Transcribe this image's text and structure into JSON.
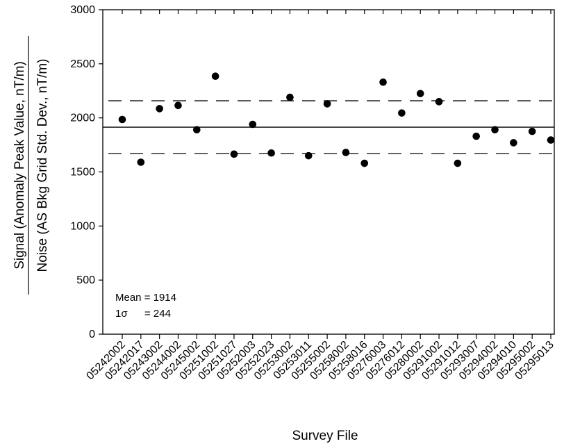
{
  "chart_data": {
    "type": "scatter",
    "title": "",
    "xlabel": "Survey File",
    "ylabel_top": "Signal (Anomaly Peak Value, nT/m)",
    "ylabel_bottom": "Noise (AS Bkg Grid Std. Dev., nT/m)",
    "ylim": [
      0,
      3000
    ],
    "y_ticks": [
      0,
      500,
      1000,
      1500,
      2000,
      2500,
      3000
    ],
    "categories": [
      "05242002",
      "05242017",
      "05243002",
      "05244002",
      "05245002",
      "05251002",
      "05251027",
      "05252003",
      "05252023",
      "05253002",
      "05253011",
      "05255002",
      "05258002",
      "05258016",
      "05276003",
      "05276012",
      "05280002",
      "05291002",
      "05291012",
      "05293007",
      "05294002",
      "05294010",
      "05295002",
      "05295013"
    ],
    "values": [
      1985,
      1590,
      2085,
      2115,
      1890,
      2385,
      1665,
      1940,
      1675,
      2190,
      1650,
      2130,
      1680,
      1580,
      2330,
      2045,
      2225,
      2150,
      1580,
      1830,
      1890,
      1770,
      1875,
      1795
    ],
    "mean_line": 1914,
    "upper_sigma_line": 2158,
    "lower_sigma_line": 1670,
    "grid": false,
    "legend": "none"
  },
  "annotation": {
    "mean_text": "Mean = 1914",
    "sigma_label": "1σ",
    "sigma_value": "= 244"
  }
}
